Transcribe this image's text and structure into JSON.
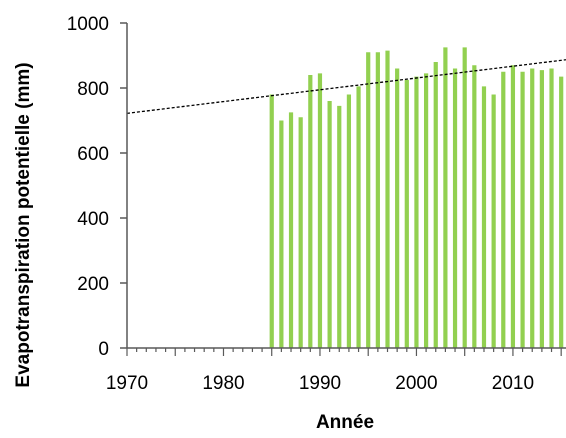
{
  "chart_data": {
    "type": "bar",
    "title": "",
    "xlabel": "Année",
    "ylabel": "Evapotranspiration  potentielle (mm)",
    "xlim": [
      1970,
      2015.5
    ],
    "ylim": [
      0,
      1000
    ],
    "xticks": [
      1970,
      1980,
      1990,
      2000,
      2010
    ],
    "yticks": [
      0,
      200,
      400,
      600,
      800,
      1000
    ],
    "grid": false,
    "legend": "none",
    "bar_color": "#92d050",
    "trend_color": "#000000",
    "years": [
      1985,
      1986,
      1987,
      1988,
      1989,
      1990,
      1991,
      1992,
      1993,
      1994,
      1995,
      1996,
      1997,
      1998,
      1999,
      2000,
      2001,
      2002,
      2003,
      2004,
      2005,
      2006,
      2007,
      2008,
      2009,
      2010,
      2011,
      2012,
      2013,
      2014,
      2015
    ],
    "values": [
      780,
      700,
      725,
      710,
      840,
      845,
      760,
      745,
      780,
      805,
      910,
      910,
      915,
      860,
      825,
      835,
      845,
      880,
      925,
      860,
      925,
      870,
      805,
      780,
      850,
      870,
      850,
      860,
      855,
      860,
      835
    ],
    "trendline": {
      "style": "dashed",
      "x": [
        1970,
        2015.5
      ],
      "y": [
        722,
        887
      ]
    }
  }
}
